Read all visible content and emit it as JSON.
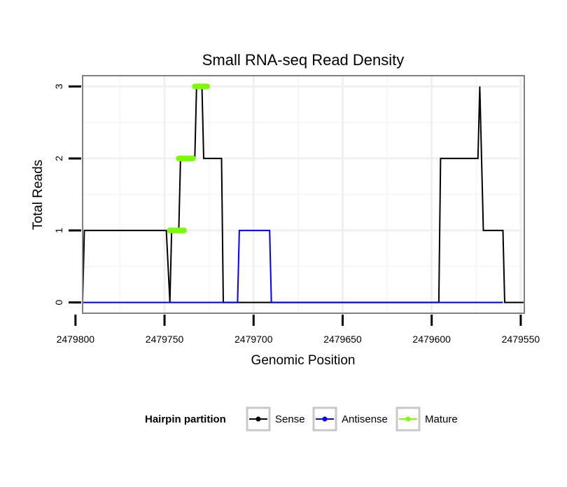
{
  "chart_data": {
    "type": "line",
    "title": "Small RNA-seq Read Density",
    "xlabel": "Genomic Position",
    "ylabel": "Total Reads",
    "x_reversed": true,
    "xlim": [
      2479796,
      2479548
    ],
    "ylim": [
      -0.15,
      3.15
    ],
    "xticks": [
      2479800,
      2479750,
      2479700,
      2479650,
      2479600,
      2479550
    ],
    "xtick_labels": [
      "2479800",
      "2479750",
      "2479700",
      "2479650",
      "2479600",
      "2479550"
    ],
    "yticks": [
      0,
      1,
      2,
      3
    ],
    "ytick_labels": [
      "0",
      "1",
      "2",
      "3"
    ],
    "grid": true,
    "legend_title": "Hairpin partition",
    "legend_position": "bottom",
    "series": [
      {
        "name": "Sense",
        "color": "#000000",
        "x": [
          2479796,
          2479795,
          2479749,
          2479747,
          2479746,
          2479742,
          2479741,
          2479733,
          2479732,
          2479729,
          2479728,
          2479718,
          2479717,
          2479596,
          2479595,
          2479574,
          2479573,
          2479571,
          2479560,
          2479559,
          2479548
        ],
        "y": [
          0,
          1,
          1,
          0,
          1,
          1,
          2,
          2,
          3,
          3,
          2,
          2,
          0,
          0,
          2,
          2,
          3,
          1,
          1,
          0,
          0
        ]
      },
      {
        "name": "Antisense",
        "color": "#0000ff",
        "x": [
          2479796,
          2479709,
          2479708,
          2479691,
          2479690,
          2479560
        ],
        "y": [
          0,
          0,
          1,
          1,
          0,
          0
        ]
      },
      {
        "name": "Mature",
        "color": "#7cfc00",
        "x": [
          2479747,
          2479739,
          2479742,
          2479734,
          2479733,
          2479726
        ],
        "y": [
          1,
          1,
          2,
          2,
          3,
          3
        ]
      }
    ]
  }
}
